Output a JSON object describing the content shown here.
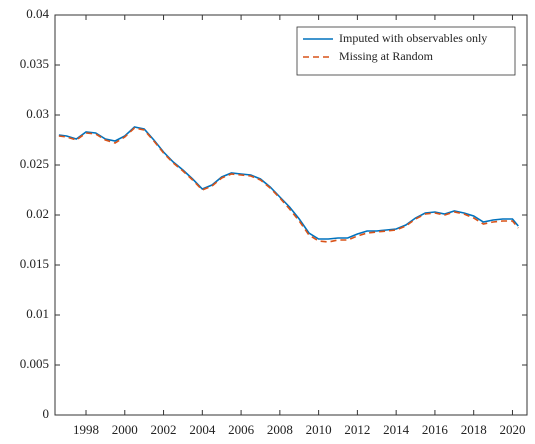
{
  "chart_data": {
    "type": "line",
    "x": [
      1996.6,
      1997,
      1997.5,
      1998,
      1998.5,
      1999,
      1999.5,
      2000,
      2000.5,
      2001,
      2001.5,
      2002,
      2002.5,
      2003,
      2003.5,
      2004,
      2004.5,
      2005,
      2005.5,
      2006,
      2006.5,
      2007,
      2007.5,
      2008,
      2008.5,
      2009,
      2009.5,
      2010,
      2010.5,
      2011,
      2011.5,
      2012,
      2012.5,
      2013,
      2013.5,
      2014,
      2014.5,
      2015,
      2015.5,
      2016,
      2016.5,
      2017,
      2017.5,
      2018,
      2018.5,
      2019,
      2019.5,
      2020,
      2020.3
    ],
    "series": [
      {
        "name": "Imputed with observables only",
        "color": "#0072bd",
        "dash": "",
        "values": [
          0.028,
          0.0279,
          0.0276,
          0.0283,
          0.0282,
          0.0276,
          0.0274,
          0.0279,
          0.0288,
          0.0286,
          0.0275,
          0.0263,
          0.0253,
          0.0245,
          0.0236,
          0.0226,
          0.023,
          0.0238,
          0.0242,
          0.0241,
          0.024,
          0.0236,
          0.0228,
          0.0218,
          0.0208,
          0.0196,
          0.0182,
          0.0176,
          0.0176,
          0.0177,
          0.0177,
          0.0181,
          0.0184,
          0.0184,
          0.0185,
          0.0186,
          0.019,
          0.0197,
          0.0202,
          0.0203,
          0.0201,
          0.0204,
          0.0202,
          0.0199,
          0.0193,
          0.0195,
          0.0196,
          0.0196,
          0.0189
        ]
      },
      {
        "name": "Missing at Random",
        "color": "#d95319",
        "dash": "6 4",
        "values": [
          0.0279,
          0.0278,
          0.0275,
          0.0282,
          0.0281,
          0.0275,
          0.0272,
          0.0278,
          0.0287,
          0.0285,
          0.0274,
          0.0262,
          0.0252,
          0.0244,
          0.0235,
          0.0225,
          0.0229,
          0.0237,
          0.0241,
          0.024,
          0.0239,
          0.0235,
          0.0227,
          0.0217,
          0.0206,
          0.0194,
          0.018,
          0.0174,
          0.0173,
          0.0175,
          0.0175,
          0.0179,
          0.0182,
          0.0183,
          0.0184,
          0.0185,
          0.0189,
          0.0196,
          0.0201,
          0.0202,
          0.02,
          0.0203,
          0.0201,
          0.0197,
          0.0191,
          0.0193,
          0.0194,
          0.0194,
          0.0187
        ]
      }
    ],
    "xlim": [
      1996.4,
      2020.75
    ],
    "xticks": [
      1998,
      2000,
      2002,
      2004,
      2006,
      2008,
      2010,
      2012,
      2014,
      2016,
      2018,
      2020
    ],
    "ylim": [
      0,
      0.04
    ],
    "yticks": [
      0,
      0.005,
      0.01,
      0.015,
      0.02,
      0.025,
      0.03,
      0.035,
      0.04
    ],
    "grid": false,
    "legend": "top-right"
  }
}
